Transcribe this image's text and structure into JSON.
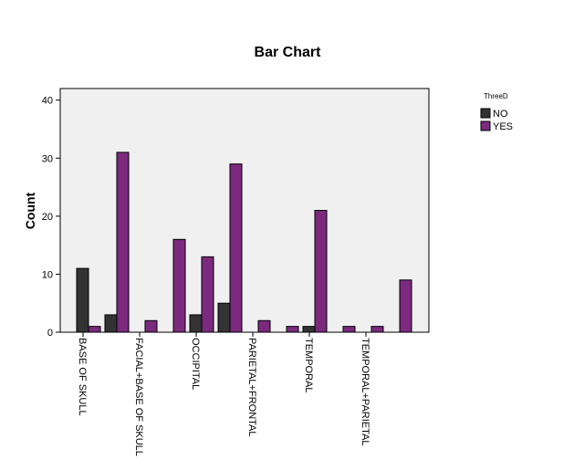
{
  "chart_data": {
    "type": "bar",
    "title": "Bar Chart",
    "y_label": "Count",
    "legend_title": "ThreeD",
    "categories": [
      "BASE OF SKULL",
      null,
      "FACIAL+BASE OF SKULL",
      null,
      "OCCIPITAL",
      null,
      "PARIETAL+FRONTAL",
      null,
      "TEMPORAL",
      null,
      "TEMPORAL+PARIETAL",
      null
    ],
    "series": [
      {
        "name": "NO",
        "color": "#333333",
        "values": [
          11,
          3,
          0,
          0,
          3,
          5,
          0,
          0,
          1,
          0,
          0,
          0
        ]
      },
      {
        "name": "YES",
        "color": "#7b2a7e",
        "values": [
          1,
          31,
          2,
          16,
          13,
          29,
          2,
          1,
          21,
          1,
          1,
          9
        ]
      }
    ],
    "ylim": [
      0,
      42
    ],
    "yticks": [
      0,
      10,
      20,
      30,
      40
    ],
    "legend_position": "right"
  }
}
